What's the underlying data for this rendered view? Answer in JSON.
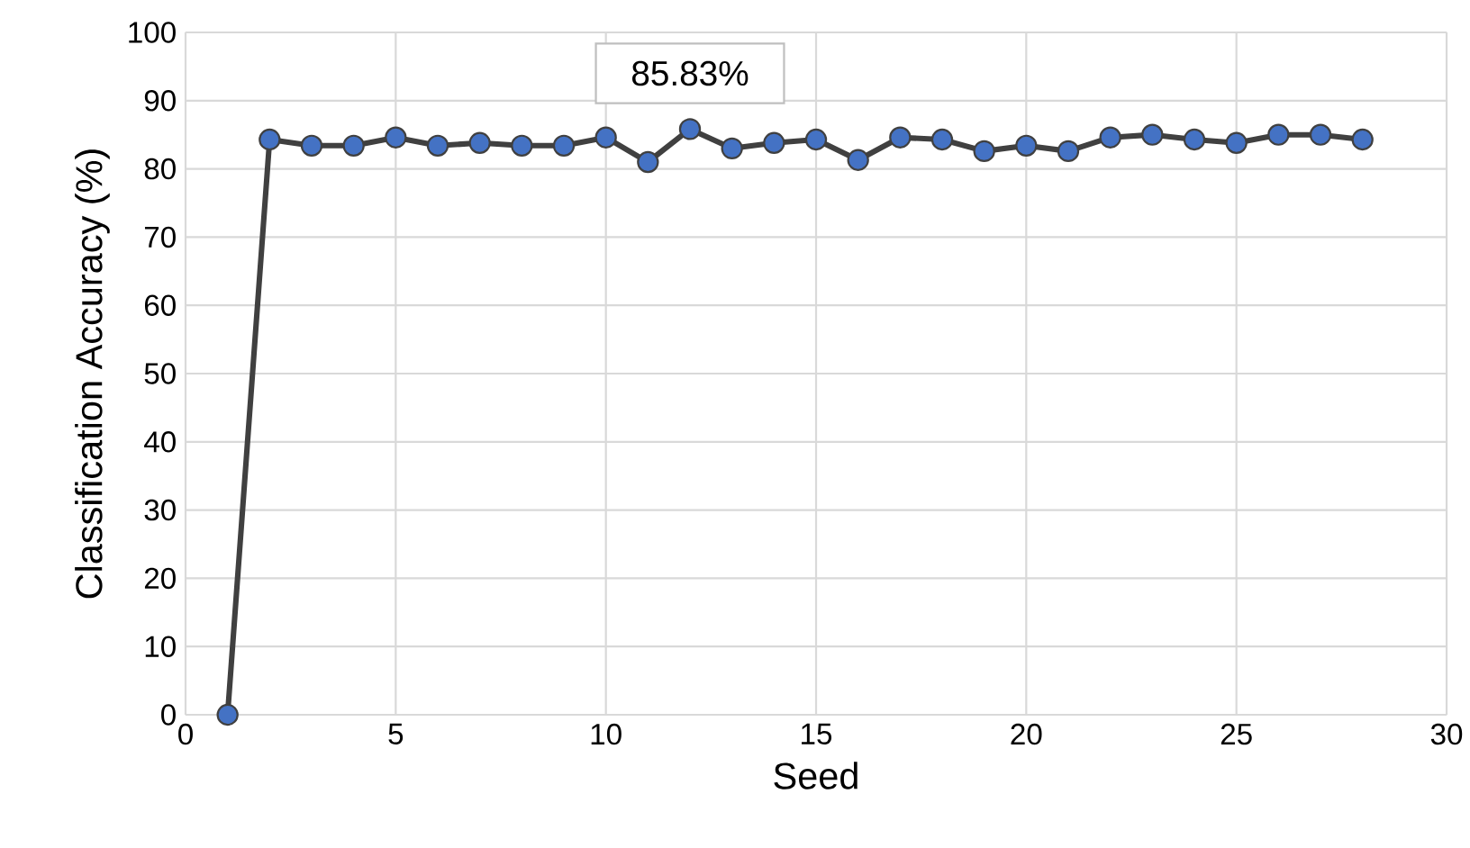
{
  "chart_data": {
    "type": "line",
    "xlabel": "Seed",
    "ylabel": "Classification Accuracy (%)",
    "x": [
      1,
      2,
      3,
      4,
      5,
      6,
      7,
      8,
      9,
      10,
      11,
      12,
      13,
      14,
      15,
      16,
      17,
      18,
      19,
      20,
      21,
      22,
      23,
      24,
      25,
      26,
      27,
      28
    ],
    "series": [
      {
        "color": "#4472c4",
        "values": [
          0,
          84.3,
          83.4,
          83.4,
          84.6,
          83.4,
          83.8,
          83.4,
          83.4,
          84.6,
          81.0,
          85.83,
          83.0,
          83.8,
          84.3,
          81.3,
          84.6,
          84.3,
          82.6,
          83.4,
          82.6,
          84.6,
          85.0,
          84.3,
          83.8,
          85.0,
          85.0,
          84.3
        ]
      }
    ],
    "xlim": [
      0,
      30
    ],
    "xticks": [
      0,
      5,
      10,
      15,
      20,
      25,
      30
    ],
    "ylim": [
      0,
      100
    ],
    "yticks": [
      0,
      10,
      20,
      30,
      40,
      50,
      60,
      70,
      80,
      90,
      100
    ],
    "grid": true,
    "marker": "circle",
    "line_style": "solid",
    "annotations": [
      {
        "text": "85.83%",
        "x": 12,
        "y": 85.83
      }
    ]
  }
}
